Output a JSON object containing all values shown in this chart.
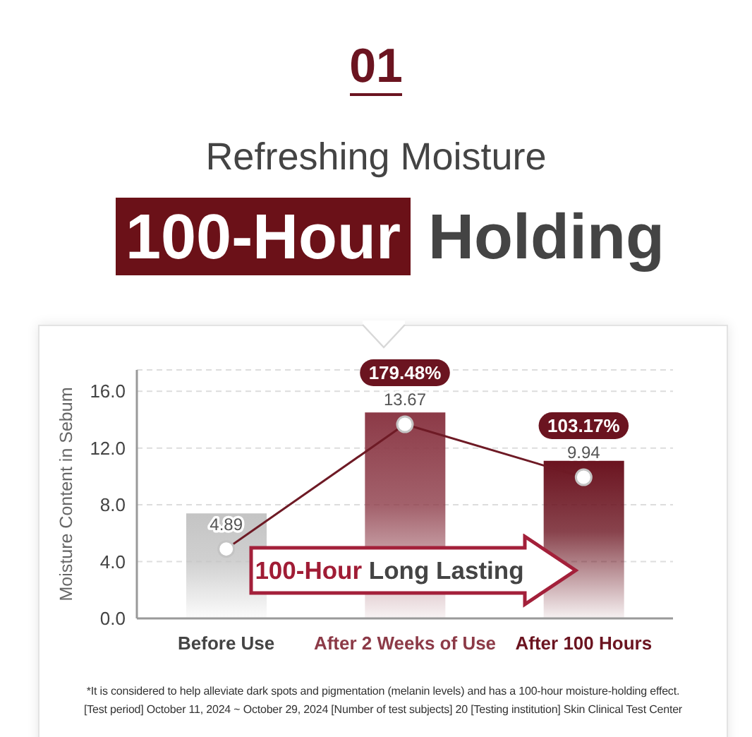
{
  "chart_data": {
    "type": "bar",
    "title": "Refreshing Moisture",
    "subtitle": "100-Hour Holding",
    "ylabel": "Moisture Content in Sebum",
    "categories": [
      "Before Use",
      "After 2 Weeks of Use",
      "After 100 Hours"
    ],
    "series": [
      {
        "colors": [
          "#c4c4c4",
          "#8c3a47",
          "#6b1420"
        ],
        "values": [
          7.4,
          14.5,
          11.1
        ]
      },
      {
        "type": "line",
        "color": "#6e1a25",
        "values": [
          4.89,
          13.67,
          9.94
        ],
        "value_labels": [
          "4.89",
          "13.67",
          "9.94"
        ]
      }
    ],
    "ylim": [
      0,
      17.5
    ],
    "yticks": [
      {
        "value": 0,
        "label": "0.0"
      },
      {
        "value": 4,
        "label": "4.0"
      },
      {
        "value": 8,
        "label": "8.0"
      },
      {
        "value": 12,
        "label": "12.0"
      },
      {
        "value": 16,
        "label": "16.0"
      }
    ],
    "grid": "y",
    "marker": "circle",
    "line_style": "solid",
    "annotations": [
      "01",
      {
        "text": "179.48%",
        "x": "After 2 Weeks of Use",
        "y": 13.67
      },
      {
        "text": "103.17%",
        "x": "After 100 Hours",
        "y": 9.94
      },
      "100-Hour Long Lasting",
      "*It is considered to help alleviate dark spots and pigmentation (melanin levels) and has a 100-hour moisture-holding effect.",
      "[Test period] October 11, 2024 ~ October 29, 2024 [Number of test subjects] 20 [Testing institution] Skin Clinical Test Center"
    ]
  }
}
